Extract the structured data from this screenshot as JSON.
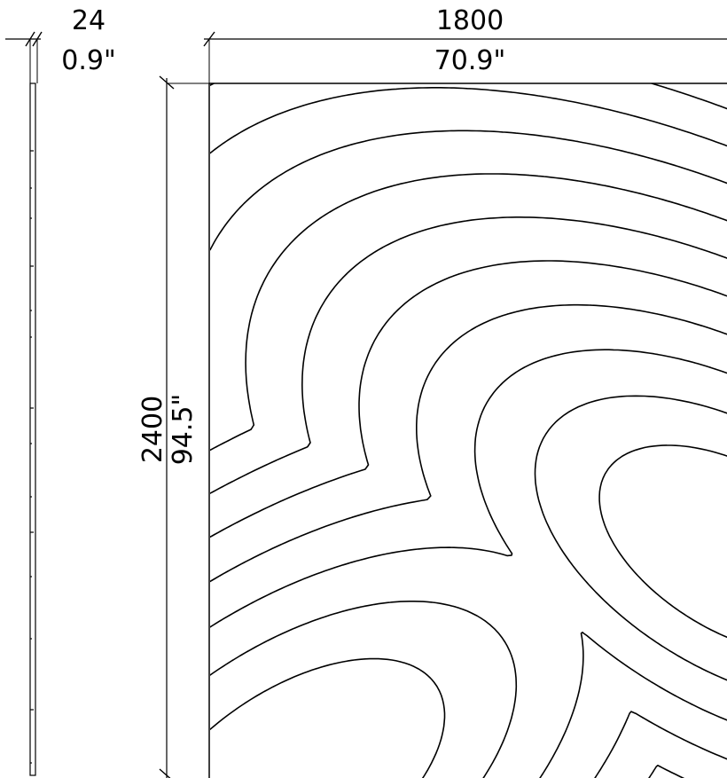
{
  "thickness": {
    "mm": "24",
    "inch": "0.9\""
  },
  "width": {
    "mm": "1800",
    "inch": "70.9\""
  },
  "height": {
    "mm": "2400",
    "inch": "94.5\""
  },
  "pattern": {
    "kind": "contour lines",
    "line_color": "#000000"
  }
}
